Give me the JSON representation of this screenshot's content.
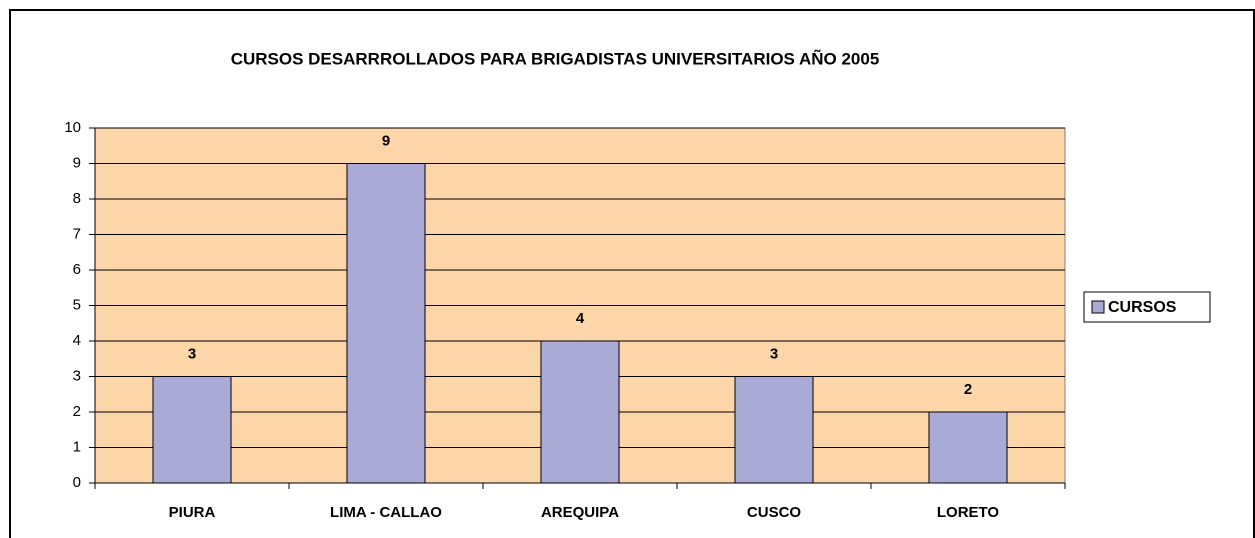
{
  "chart_data": {
    "type": "bar",
    "title": "CURSOS DESARRROLLADOS PARA BRIGADISTAS UNIVERSITARIOS AÑO 2005",
    "categories": [
      "PIURA",
      "LIMA - CALLAO",
      "AREQUIPA",
      "CUSCO",
      "LORETO"
    ],
    "series": [
      {
        "name": "CURSOS",
        "color": "#aaaad6",
        "values": [
          3,
          9,
          4,
          3,
          2
        ]
      }
    ],
    "ylim": [
      0,
      10
    ],
    "yticks": [
      0,
      1,
      2,
      3,
      4,
      5,
      6,
      7,
      8,
      9,
      10
    ],
    "grid": true,
    "plot_background": "#fcd5a8",
    "legend": "right"
  }
}
